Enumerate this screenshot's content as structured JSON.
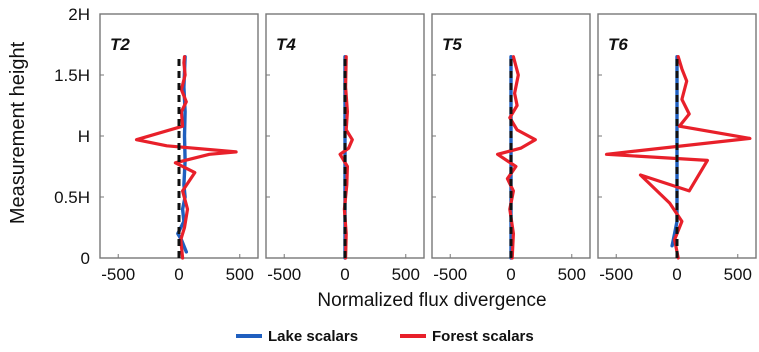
{
  "chart_data": {
    "type": "line",
    "ylabel": "Measurement height",
    "xlabel": "Normalized flux divergence",
    "y_ticks": [
      "0",
      "0.5H",
      "H",
      "1.5H",
      "2H"
    ],
    "ylim": [
      0,
      2
    ],
    "xlim": [
      -650,
      650
    ],
    "x_ticks": [
      "-500",
      "0",
      "500"
    ],
    "x_tick_values": [
      -500,
      0,
      500
    ],
    "legend": {
      "position": "bottom",
      "entries": [
        {
          "label": "Lake scalars",
          "color": "#1f5fbf"
        },
        {
          "label": "Forest scalars",
          "color": "#e8202a"
        }
      ]
    },
    "reference_line": {
      "x": 0,
      "style": "dashed",
      "color": "#111111"
    },
    "panels": [
      {
        "title": "T2",
        "series": [
          {
            "name": "Lake scalars",
            "color": "#1f5fbf",
            "points": [
              [
                60,
                0.05
              ],
              [
                20,
                0.15
              ],
              [
                -10,
                0.2
              ],
              [
                40,
                0.3
              ],
              [
                30,
                0.4
              ],
              [
                50,
                0.5
              ],
              [
                40,
                0.6
              ],
              [
                50,
                0.8
              ],
              [
                45,
                1.0
              ],
              [
                50,
                1.2
              ],
              [
                40,
                1.4
              ],
              [
                50,
                1.65
              ]
            ]
          },
          {
            "name": "Forest scalars",
            "color": "#e8202a",
            "points": [
              [
                30,
                0.0
              ],
              [
                15,
                0.15
              ],
              [
                45,
                0.25
              ],
              [
                70,
                0.4
              ],
              [
                30,
                0.55
              ],
              [
                130,
                0.7
              ],
              [
                -30,
                0.78
              ],
              [
                250,
                0.85
              ],
              [
                470,
                0.87
              ],
              [
                -100,
                0.92
              ],
              [
                -350,
                0.97
              ],
              [
                30,
                1.08
              ],
              [
                20,
                1.2
              ],
              [
                60,
                1.28
              ],
              [
                20,
                1.38
              ],
              [
                50,
                1.5
              ],
              [
                40,
                1.6
              ],
              [
                45,
                1.65
              ]
            ]
          }
        ]
      },
      {
        "title": "T4",
        "series": [
          {
            "name": "Lake scalars",
            "color": "#1f5fbf",
            "points": [
              [
                0,
                0.0
              ],
              [
                0,
                0.5
              ],
              [
                0,
                1.0
              ],
              [
                0,
                1.65
              ]
            ]
          },
          {
            "name": "Forest scalars",
            "color": "#e8202a",
            "points": [
              [
                5,
                0.0
              ],
              [
                10,
                0.2
              ],
              [
                -5,
                0.4
              ],
              [
                15,
                0.6
              ],
              [
                20,
                0.75
              ],
              [
                -40,
                0.85
              ],
              [
                30,
                0.9
              ],
              [
                60,
                0.97
              ],
              [
                10,
                1.05
              ],
              [
                20,
                1.2
              ],
              [
                5,
                1.4
              ],
              [
                10,
                1.65
              ]
            ]
          }
        ]
      },
      {
        "title": "T5",
        "series": [
          {
            "name": "Lake scalars",
            "color": "#1f5fbf",
            "points": [
              [
                0,
                0.0
              ],
              [
                0,
                0.5
              ],
              [
                0,
                1.0
              ],
              [
                0,
                1.65
              ]
            ]
          },
          {
            "name": "Forest scalars",
            "color": "#e8202a",
            "points": [
              [
                10,
                0.0
              ],
              [
                20,
                0.2
              ],
              [
                -10,
                0.4
              ],
              [
                20,
                0.55
              ],
              [
                -30,
                0.65
              ],
              [
                40,
                0.75
              ],
              [
                -110,
                0.85
              ],
              [
                80,
                0.9
              ],
              [
                200,
                0.97
              ],
              [
                50,
                1.05
              ],
              [
                -10,
                1.15
              ],
              [
                50,
                1.25
              ],
              [
                30,
                1.35
              ],
              [
                60,
                1.5
              ],
              [
                20,
                1.65
              ]
            ]
          }
        ]
      },
      {
        "title": "T6",
        "series": [
          {
            "name": "Lake scalars",
            "color": "#1f5fbf",
            "points": [
              [
                -40,
                0.1
              ],
              [
                -20,
                0.2
              ],
              [
                0,
                0.3
              ],
              [
                0,
                1.0
              ],
              [
                0,
                1.65
              ]
            ]
          },
          {
            "name": "Forest scalars",
            "color": "#e8202a",
            "points": [
              [
                10,
                0.0
              ],
              [
                -20,
                0.15
              ],
              [
                40,
                0.3
              ],
              [
                -60,
                0.45
              ],
              [
                -300,
                0.68
              ],
              [
                100,
                0.55
              ],
              [
                250,
                0.8
              ],
              [
                -580,
                0.85
              ],
              [
                600,
                0.98
              ],
              [
                20,
                1.08
              ],
              [
                100,
                1.18
              ],
              [
                40,
                1.3
              ],
              [
                80,
                1.45
              ],
              [
                40,
                1.55
              ],
              [
                10,
                1.65
              ]
            ]
          }
        ]
      }
    ]
  }
}
